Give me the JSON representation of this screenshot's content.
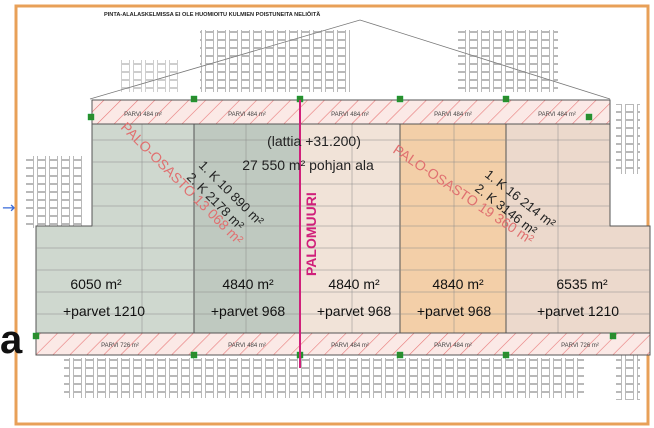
{
  "colors": {
    "frame_border": "#e8a058",
    "zone_left": "#cfd8cf",
    "zone_left_dark": "#bfc9c0",
    "zone_right_orange": "#f3cfa8",
    "zone_right_light": "#ecd9cc",
    "hatch": "#e87878",
    "firewall": "#d0207a",
    "connector": "#2e8b2e",
    "grid_line": "#777777",
    "text": "#111111"
  },
  "header": {
    "note": "PINTA-ALALASKELMISSA EI OLE HUOMIOITU KULMIEN POISTUNEITA NELIÖITÄ"
  },
  "plan": {
    "level": "(lattia +31.200)",
    "floor_area": "27 550 m² pohjan ala",
    "firewall_label": "PALOMUURI",
    "fire_compartments": [
      {
        "label": "PALO-OSASTO 13 068 m²",
        "one_k": "1. K  10 890 m²",
        "two_k": "2. K  2178 m²"
      },
      {
        "label": "PALO-OSASTO 19 360 m²",
        "one_k": "1. K  16 214 m²",
        "two_k": "2. K  3146 m²"
      }
    ],
    "sections": [
      {
        "area": "6050 m²",
        "parvet": "+parvet 1210"
      },
      {
        "area": "4840 m²",
        "parvet": "+parvet 968"
      },
      {
        "area": "4840 m²",
        "parvet": "+parvet 968"
      },
      {
        "area": "4840 m²",
        "parvet": "+parvet 968"
      },
      {
        "area": "6535 m²",
        "parvet": "+parvet 1210"
      }
    ],
    "parvi_top": [
      "PARVI 484 m²",
      "PARVI 484 m²",
      "PARVI 484 m²",
      "PARVI 484 m²",
      "PARVI 484 m²"
    ],
    "parvi_bottom": [
      "PARVI 726 m²",
      "PARVI 484 m²",
      "PARVI 484 m²",
      "PARVI 484 m²",
      "PARVI 726 m²"
    ]
  },
  "page_side": {
    "char": "a",
    "arrow": "→"
  }
}
